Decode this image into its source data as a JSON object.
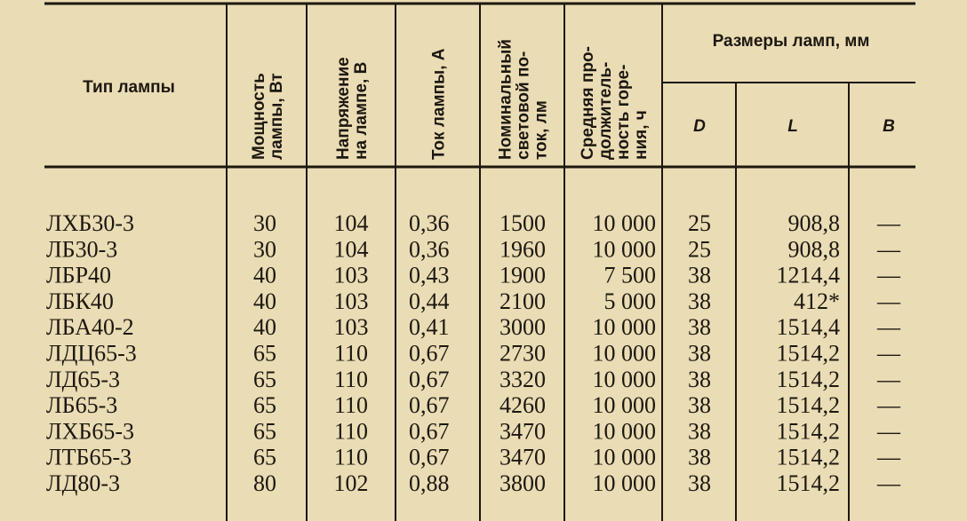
{
  "header": {
    "type_title": "Тип лампы",
    "columns": [
      [
        "Мощность",
        "лампы, Вт"
      ],
      [
        "Напряжение",
        "на лампе, В"
      ],
      [
        "Ток лампы, А"
      ],
      [
        "Номинальный",
        "световой по-",
        "ток, лм"
      ],
      [
        "Средняя про-",
        "должитель-",
        "ность горе-",
        "ния, ч"
      ]
    ],
    "sizes_title": "Размеры ламп, мм",
    "sizes": [
      "D",
      "L",
      "B"
    ]
  },
  "table": {
    "rows": [
      [
        "ЛХБ30-3",
        "30",
        "104",
        "0,36",
        "1500",
        "10 000",
        "25",
        "908,8",
        "—"
      ],
      [
        "ЛБ30-3",
        "30",
        "104",
        "0,36",
        "1960",
        "10 000",
        "25",
        "908,8",
        "—"
      ],
      [
        "ЛБР40",
        "40",
        "103",
        "0,43",
        "1900",
        "7 500",
        "38",
        "1214,4",
        "—"
      ],
      [
        "ЛБК40",
        "40",
        "103",
        "0,44",
        "2100",
        "5 000",
        "38",
        "412*",
        "—"
      ],
      [
        "ЛБА40-2",
        "40",
        "103",
        "0,41",
        "3000",
        "10 000",
        "38",
        "1514,4",
        "—"
      ],
      [
        "ЛДЦ65-3",
        "65",
        "110",
        "0,67",
        "2730",
        "10 000",
        "38",
        "1514,2",
        "—"
      ],
      [
        "ЛД65-3",
        "65",
        "110",
        "0,67",
        "3320",
        "10 000",
        "38",
        "1514,2",
        "—"
      ],
      [
        "ЛБ65-3",
        "65",
        "110",
        "0,67",
        "4260",
        "10 000",
        "38",
        "1514,2",
        "—"
      ],
      [
        "ЛХБ65-3",
        "65",
        "110",
        "0,67",
        "3470",
        "10 000",
        "38",
        "1514,2",
        "—"
      ],
      [
        "ЛТБ65-3",
        "65",
        "110",
        "0,67",
        "3470",
        "10 000",
        "38",
        "1514,2",
        "—"
      ],
      [
        "ЛД80-3",
        "80",
        "102",
        "0,88",
        "3800",
        "10 000",
        "38",
        "1514,2",
        "—"
      ]
    ]
  }
}
